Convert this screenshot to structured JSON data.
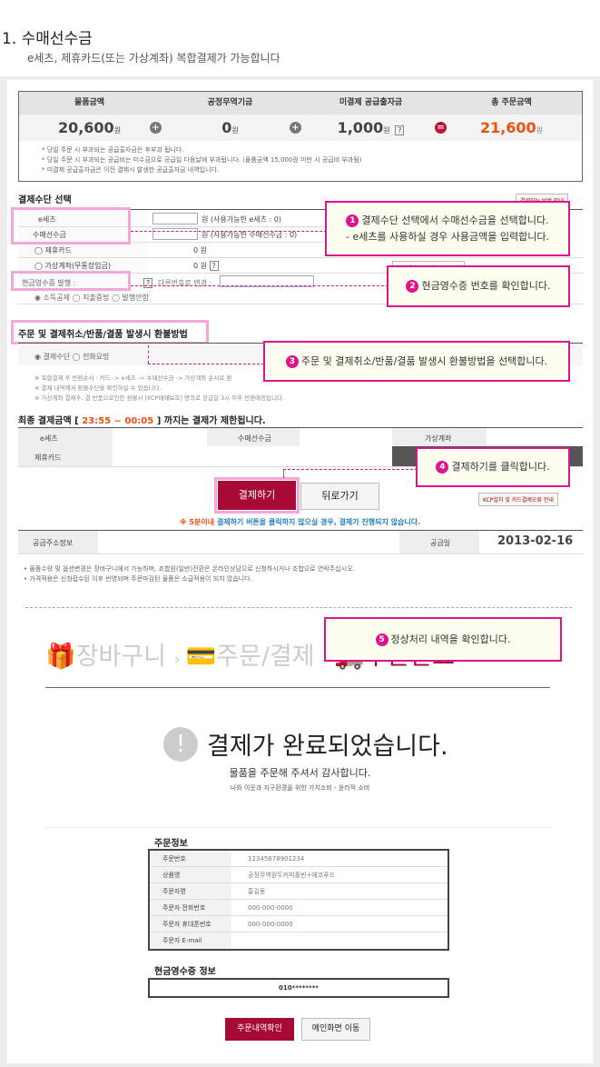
{
  "header": {
    "title": "1. 수매선수금",
    "subtitle": "e세츠, 제휴카드(또는 가상계좌) 복합결제가 가능합니다"
  },
  "summary": {
    "columns": [
      "물품금액",
      "공정무역기금",
      "미결제 공급출자금",
      "총 주문금액"
    ],
    "values": [
      "20,600",
      "0",
      "1,000",
      "21,600"
    ],
    "unit": "원",
    "operators": [
      "+",
      "+",
      "="
    ],
    "help": "?",
    "notes": [
      "* 당일 주문 시 부과되는 공급출자금은 후부과 됩니다.",
      "* 당일 주문 시 부과되는 공급비는 미수금으로 공급일 다음날에 부과됩니다. (물품금액 15,000원 미만 시 공급비 부과됨)",
      "* 미결제 공급출자금은 이전 결제시 발생한 공급출자금 내역입니다."
    ],
    "total_color": "#f04e12"
  },
  "payment": {
    "title": "결제수단 선택",
    "guide_button": "결제하는 방법 안내",
    "rows": [
      {
        "label": "e세츠",
        "suffix": "원 (사용가능한 e세츠 : 0)"
      },
      {
        "label": "수매선수금",
        "suffix": "원 (사용가능한 수매선수금 : 0)"
      },
      {
        "label": "제휴카드",
        "amount": "0 원"
      },
      {
        "label": "가상계좌(무통장입금)",
        "amount": "0 원",
        "help": "?"
      }
    ],
    "vbank_button": "가상계좌 입금가능시간 안내",
    "receipt_label": "현금영수증 발행 :",
    "receipt_help": "?",
    "receipt_change": "다른번호로 변경 :",
    "receipt_options": [
      "소득공제",
      "지출증빙",
      "발행안함"
    ]
  },
  "refund": {
    "title": "주문 및 결제취소/반품/결품 발생시 환불방법",
    "options": [
      "결제수단",
      "전화요망"
    ],
    "notes": [
      "※ 복합결제 후 반환순서 : 카드 -> e세츠 -> 수매선수금 -> 가상계좌 순서로 환",
      "※ 결제 내역에서 환불수단을 확인하실 수 있습니다.",
      "※ 가상계좌 결제후, 결 반품으로인한 환불시 [KCP매매보호] 명의로 공급일 3시 이후 반환예정입니다."
    ]
  },
  "final": {
    "title_pre": "최종 결제금액  [",
    "time": "23:55 ~ 00:05",
    "title_post": "] 까지는 결제가 제한됩니다.",
    "cols": [
      "e세츠",
      "수매선수금",
      "가상계좌",
      "제휴카드"
    ],
    "pay_button": "결제하기",
    "back_button": "뒤로가기",
    "kcp_button": "KCP설치 및 카드결제오류 안내",
    "warning_pre": "※ 5분이내",
    "warning_post": " 결제하기 버튼을 클릭하지 않으실 경우, 결제가 진행되지 않습니다.",
    "address_label": "공급주소정보",
    "date_label": "공급일",
    "date": "2013-02-16",
    "notes": [
      "• 물품수량 및 옵션변경은 장바구니에서 가능하며, 조합원(일반)전환은 온라인상담으로 신청하시거나 조합으로 연락주십시오.",
      "• 가격적용은 신청접수된 이후 반영되며 주문마감된 물품은 소급적용이 되지 않습니다."
    ]
  },
  "callouts": [
    {
      "num": "1",
      "lines": [
        "결제수단 선택에서 수매선수금을 선택합니다.",
        "- e세츠를 사용하실 경우 사용금액을 입력합니다."
      ]
    },
    {
      "num": "2",
      "lines": [
        "현금영수증 번호를 확인합니다."
      ]
    },
    {
      "num": "3",
      "lines": [
        "주문 및 결제취소/반품/결품 발생시 환불방법을 선택합니다."
      ]
    },
    {
      "num": "4",
      "lines": [
        "결제하기를 클릭합니다."
      ]
    },
    {
      "num": "5",
      "lines": [
        "정상처리 내역을 확인합니다."
      ]
    }
  ],
  "complete": {
    "steps": [
      "장바구니",
      "주문/결제",
      "주문완료"
    ],
    "title": "결제가 완료되었습니다.",
    "thanks": "물품을 주문해 주셔서 감사합니다.",
    "slogan": "나와 이웃과 지구환경을 위한 가치소비 - 윤리적 소비",
    "order_info_title": "주문정보",
    "order_info": [
      {
        "label": "주문번호",
        "value": "12345678901234"
      },
      {
        "label": "상품명",
        "value": "공정무역원두커피홀빈+에코푸드"
      },
      {
        "label": "주문자명",
        "value": "홍길동"
      },
      {
        "label": "주문자 전화번호",
        "value": "000-000-0000"
      },
      {
        "label": "주문자 휴대폰번호",
        "value": "000-000-0000"
      },
      {
        "label": "주문자 E-mail",
        "value": ""
      }
    ],
    "receipt_title": "현금영수증 정보",
    "receipt_value": "010********",
    "order_button": "주문내역확인",
    "main_button": "메인화면 이동"
  },
  "colors": {
    "accent": "#e0138c",
    "button": "#a80a36",
    "highlight": "#f4a8d8"
  }
}
